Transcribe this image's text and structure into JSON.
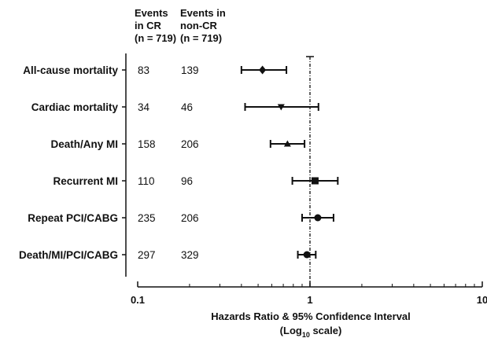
{
  "chart_data": {
    "type": "forest",
    "columns": {
      "cr": [
        "Events",
        "in CR",
        "(n = 719)"
      ],
      "noncr": [
        "Events in",
        "non-CR",
        "(n = 719)"
      ]
    },
    "rows": [
      {
        "label": "All-cause mortality",
        "events_cr": "83",
        "events_noncr": "139",
        "hr": 0.53,
        "ci_low": 0.4,
        "ci_high": 0.73,
        "marker": "diamond"
      },
      {
        "label": "Cardiac mortality",
        "events_cr": "34",
        "events_noncr": "46",
        "hr": 0.68,
        "ci_low": 0.42,
        "ci_high": 1.12,
        "marker": "triangle-down"
      },
      {
        "label": "Death/Any MI",
        "events_cr": "158",
        "events_noncr": "206",
        "hr": 0.74,
        "ci_low": 0.59,
        "ci_high": 0.93,
        "marker": "triangle-up"
      },
      {
        "label": "Recurrent MI",
        "events_cr": "110",
        "events_noncr": "96",
        "hr": 1.07,
        "ci_low": 0.79,
        "ci_high": 1.45,
        "marker": "square"
      },
      {
        "label": "Repeat PCI/CABG",
        "events_cr": "235",
        "events_noncr": "206",
        "hr": 1.11,
        "ci_low": 0.9,
        "ci_high": 1.37,
        "marker": "circle"
      },
      {
        "label": "Death/MI/PCI/CABG",
        "events_cr": "297",
        "events_noncr": "329",
        "hr": 0.96,
        "ci_low": 0.85,
        "ci_high": 1.08,
        "marker": "circle"
      }
    ],
    "xaxis": {
      "scale": "log",
      "range": [
        0.1,
        10
      ],
      "ticks": [
        0.1,
        1,
        10
      ],
      "tick_labels": [
        "0.1",
        "1",
        "10"
      ],
      "label_line1": "Hazards Ratio & 95% Confidence Interval",
      "label_line2_pre": "(Log",
      "label_line2_sub": "10",
      "label_line2_post": " scale)"
    },
    "reference_line": 1
  }
}
